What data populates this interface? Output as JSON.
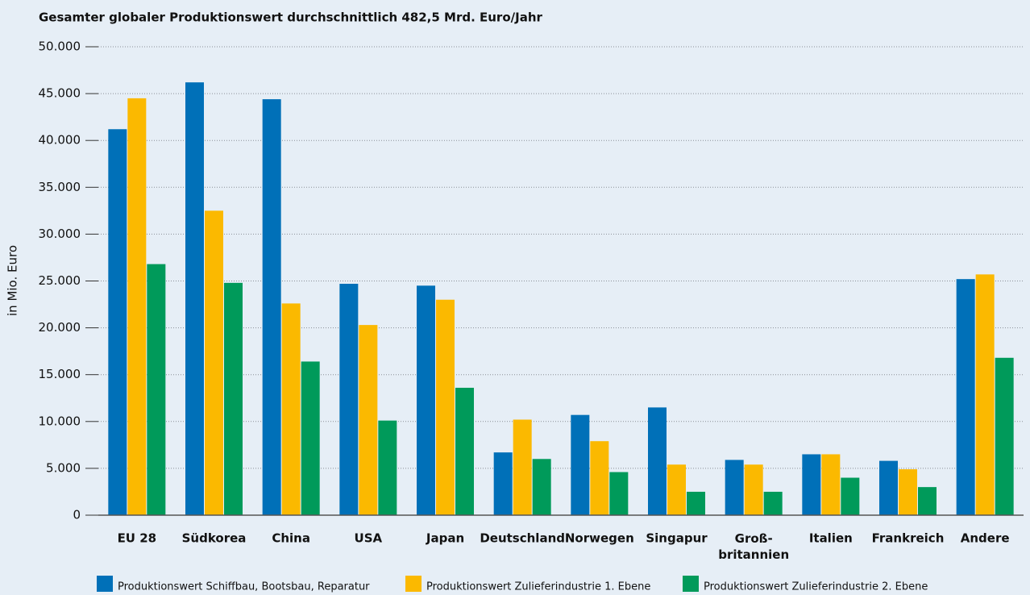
{
  "chart_data": {
    "type": "bar",
    "title": "Gesamter globaler Produktionswert durchschnittlich 482,5 Mrd. Euro/Jahr",
    "y_label": "in Mio. Euro",
    "categories": [
      "EU 28",
      "Südkorea",
      "China",
      "USA",
      "Japan",
      "Deutschland",
      "Norwegen",
      "Singapur",
      "Groß-\nbritannien",
      "Italien",
      "Frankreich",
      "Andere"
    ],
    "series": [
      {
        "name": "Produktionswert Schiffbau, Bootsbau, Reparatur",
        "color": "#0070b8",
        "values": [
          41200,
          46200,
          44400,
          24700,
          24500,
          6700,
          10700,
          11500,
          5900,
          6500,
          5800,
          25200
        ]
      },
      {
        "name": "Produktionswert Zulieferindustrie 1. Ebene",
        "color": "#fbb900",
        "values": [
          44500,
          32500,
          22600,
          20300,
          23000,
          10200,
          7900,
          5400,
          5400,
          6500,
          4900,
          25700
        ]
      },
      {
        "name": "Produktionswert Zulieferindustrie 2. Ebene",
        "color": "#009a5a",
        "values": [
          26800,
          24800,
          16400,
          10100,
          13600,
          6000,
          4600,
          2500,
          2500,
          4000,
          3000,
          16800
        ]
      }
    ],
    "ylim": [
      0,
      50000
    ],
    "yticks": [
      0,
      {
        "value": 5000,
        "label": "5.000"
      },
      {
        "value": 10000,
        "label": "10.000"
      },
      {
        "value": 15000,
        "label": "15.000"
      },
      {
        "value": 20000,
        "label": "20.000"
      },
      {
        "value": 25000,
        "label": "25.000"
      },
      {
        "value": 30000,
        "label": "30.000"
      },
      {
        "value": 35000,
        "label": "35.000"
      },
      {
        "value": 40000,
        "label": "40.000"
      },
      {
        "value": 45000,
        "label": "45.000"
      },
      {
        "value": 50000,
        "label": "50.000"
      }
    ],
    "grid": true
  }
}
